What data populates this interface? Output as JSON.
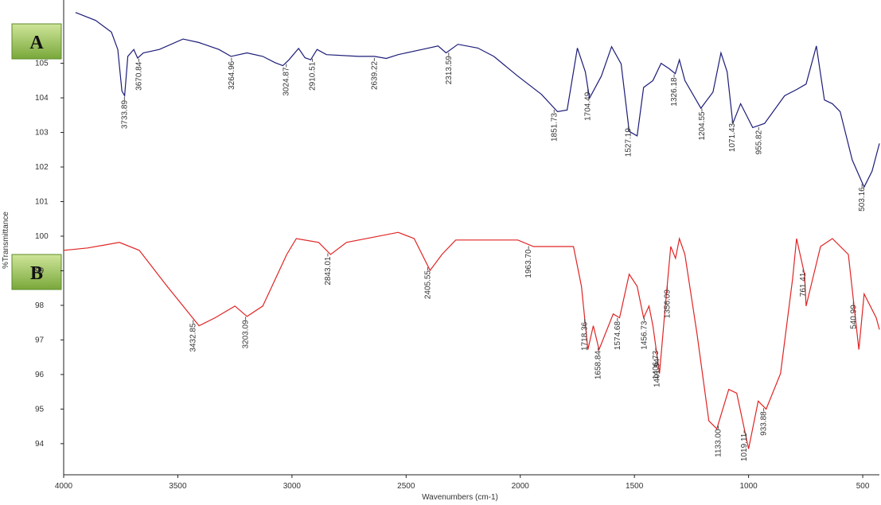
{
  "chart_data": {
    "type": "line",
    "x_label": "Wavenumbers (cm-1)",
    "y_label": "%Transmittance",
    "xlim": [
      4000,
      427
    ],
    "ylim": [
      93.1,
      106.6
    ],
    "xticks": [
      4000,
      3500,
      3000,
      2500,
      2000,
      1500,
      1000,
      500
    ],
    "yticks": [
      94,
      95,
      96,
      97,
      98,
      99,
      100,
      101,
      102,
      103,
      104,
      105
    ],
    "grid": false,
    "series": [
      {
        "name": "A",
        "color": "#1c1c78",
        "x": [
          3948,
          3860,
          3791,
          3763,
          3745,
          3733,
          3719,
          3693,
          3676,
          3651,
          3581,
          3477,
          3407,
          3320,
          3267,
          3197,
          3128,
          3075,
          3040,
          3013,
          2971,
          2943,
          2918,
          2890,
          2849,
          2709,
          2639,
          2587,
          2535,
          2430,
          2360,
          2325,
          2273,
          2186,
          2116,
          2011,
          1907,
          1837,
          1795,
          1750,
          1715,
          1697,
          1645,
          1600,
          1558,
          1523,
          1488,
          1460,
          1419,
          1383,
          1349,
          1321,
          1303,
          1279,
          1209,
          1156,
          1121,
          1094,
          1069,
          1035,
          982,
          930,
          842,
          790,
          748,
          703,
          668,
          633,
          599,
          546,
          494,
          459,
          427
        ],
        "values": [
          106.47,
          106.24,
          105.9,
          105.4,
          104.2,
          104.06,
          105.2,
          105.4,
          105.15,
          105.3,
          105.4,
          105.7,
          105.6,
          105.4,
          105.2,
          105.3,
          105.2,
          105.02,
          104.93,
          105.1,
          105.43,
          105.16,
          105.1,
          105.4,
          105.25,
          105.2,
          105.2,
          105.14,
          105.25,
          105.4,
          105.5,
          105.3,
          105.55,
          105.44,
          105.2,
          104.63,
          104.1,
          103.6,
          103.65,
          105.44,
          104.75,
          103.99,
          104.63,
          105.48,
          104.98,
          103.03,
          102.9,
          104.3,
          104.5,
          105.0,
          104.85,
          104.7,
          105.1,
          104.5,
          103.7,
          104.17,
          105.3,
          104.75,
          103.26,
          103.83,
          103.14,
          103.26,
          104.06,
          104.24,
          104.4,
          105.5,
          103.94,
          103.83,
          103.6,
          102.2,
          101.42,
          101.88,
          102.68
        ],
        "peak_labels": [
          "3733.89",
          "3670.84",
          "3264.96",
          "3024.87",
          "2910.51",
          "2639.22",
          "2313.59",
          "1851.73",
          "1704.49",
          "1527.19",
          "1326.18",
          "1204.55",
          "1071.43",
          "955.82",
          "503.16"
        ]
      },
      {
        "name": "B",
        "color": "#e02424",
        "x": [
          4000,
          3895,
          3756,
          3669,
          3547,
          3407,
          3337,
          3250,
          3197,
          3128,
          3023,
          2981,
          2883,
          2831,
          2761,
          2535,
          2465,
          2395,
          2343,
          2283,
          2011,
          1942,
          1767,
          1732,
          1704,
          1680,
          1655,
          1593,
          1565,
          1523,
          1488,
          1460,
          1436,
          1419,
          1390,
          1366,
          1341,
          1320,
          1303,
          1279,
          1226,
          1174,
          1139,
          1087,
          1052,
          1000,
          958,
          923,
          860,
          807,
          790,
          755,
          748,
          685,
          633,
          563,
          517,
          494,
          441,
          427
        ],
        "values": [
          99.59,
          99.66,
          99.82,
          99.59,
          98.55,
          97.41,
          97.64,
          97.98,
          97.68,
          97.98,
          99.47,
          99.93,
          99.82,
          99.47,
          99.82,
          100.11,
          99.93,
          99.01,
          99.47,
          99.89,
          99.89,
          99.7,
          99.7,
          98.55,
          96.72,
          97.41,
          96.72,
          97.75,
          97.64,
          98.9,
          98.55,
          97.64,
          97.98,
          97.41,
          96.03,
          97.87,
          99.7,
          99.36,
          99.93,
          99.47,
          97.18,
          94.66,
          94.43,
          95.57,
          95.46,
          93.85,
          95.23,
          95.0,
          96.03,
          98.78,
          99.93,
          98.9,
          97.98,
          99.7,
          99.93,
          99.47,
          96.72,
          98.33,
          97.64,
          97.3
        ],
        "peak_labels": [
          "3432.85",
          "3203.09",
          "2843.01",
          "2405.55",
          "1963.70",
          "1718.36",
          "1658.84",
          "1574.68",
          "1456.73",
          "1406.73",
          "1401.94",
          "1356.09",
          "1133.00",
          "1019.11",
          "933.88",
          "761.41",
          "540.99"
        ]
      }
    ]
  }
}
